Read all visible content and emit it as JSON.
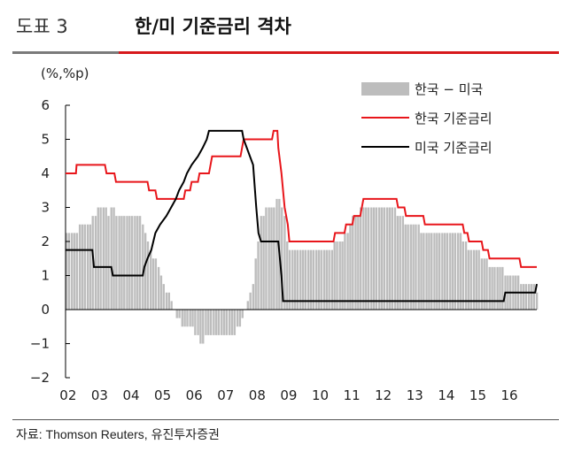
{
  "header": {
    "figure_label": "도표 3",
    "title": "한/미 기준금리 격차"
  },
  "unit_label": "(%,%p)",
  "source": "자료: Thomson Reuters, 유진투자증권",
  "chart_data": {
    "type": "bar+line",
    "x_labels": [
      "02",
      "03",
      "04",
      "05",
      "06",
      "07",
      "08",
      "09",
      "10",
      "11",
      "12",
      "13",
      "14",
      "15",
      "16"
    ],
    "y_ticks": [
      "6",
      "5",
      "4",
      "3",
      "2",
      "1",
      "0",
      "−1",
      "−2"
    ],
    "ylim": [
      -2,
      6
    ],
    "xlim": [
      2002.0,
      2016.95
    ],
    "legend_position": "top-right",
    "colors": {
      "diff": "#bdbdbd",
      "korea": "#e8161b",
      "us": "#000000"
    },
    "series": [
      {
        "name": "한국 − 미국",
        "type": "bar",
        "color": "#bdbdbd",
        "values": [
          [
            2002.0,
            2.25
          ],
          [
            2002.08,
            2.25
          ],
          [
            2002.17,
            2.25
          ],
          [
            2002.25,
            2.25
          ],
          [
            2002.33,
            2.25
          ],
          [
            2002.42,
            2.5
          ],
          [
            2002.5,
            2.5
          ],
          [
            2002.58,
            2.5
          ],
          [
            2002.67,
            2.5
          ],
          [
            2002.75,
            2.5
          ],
          [
            2002.83,
            2.75
          ],
          [
            2002.92,
            2.75
          ],
          [
            2003.0,
            3.0
          ],
          [
            2003.08,
            3.0
          ],
          [
            2003.17,
            3.0
          ],
          [
            2003.25,
            3.0
          ],
          [
            2003.33,
            2.75
          ],
          [
            2003.42,
            3.0
          ],
          [
            2003.5,
            3.0
          ],
          [
            2003.58,
            2.75
          ],
          [
            2003.67,
            2.75
          ],
          [
            2003.75,
            2.75
          ],
          [
            2003.83,
            2.75
          ],
          [
            2003.92,
            2.75
          ],
          [
            2004.0,
            2.75
          ],
          [
            2004.08,
            2.75
          ],
          [
            2004.17,
            2.75
          ],
          [
            2004.25,
            2.75
          ],
          [
            2004.33,
            2.75
          ],
          [
            2004.42,
            2.5
          ],
          [
            2004.5,
            2.25
          ],
          [
            2004.58,
            2.0
          ],
          [
            2004.67,
            1.75
          ],
          [
            2004.75,
            1.5
          ],
          [
            2004.83,
            1.5
          ],
          [
            2004.92,
            1.25
          ],
          [
            2005.0,
            1.0
          ],
          [
            2005.08,
            0.75
          ],
          [
            2005.17,
            0.5
          ],
          [
            2005.25,
            0.5
          ],
          [
            2005.33,
            0.25
          ],
          [
            2005.42,
            0.0
          ],
          [
            2005.5,
            -0.25
          ],
          [
            2005.58,
            -0.25
          ],
          [
            2005.67,
            -0.5
          ],
          [
            2005.75,
            -0.5
          ],
          [
            2005.83,
            -0.5
          ],
          [
            2005.92,
            -0.5
          ],
          [
            2006.0,
            -0.5
          ],
          [
            2006.08,
            -0.75
          ],
          [
            2006.17,
            -0.75
          ],
          [
            2006.25,
            -1.0
          ],
          [
            2006.33,
            -1.0
          ],
          [
            2006.42,
            -0.75
          ],
          [
            2006.5,
            -0.75
          ],
          [
            2006.58,
            -0.75
          ],
          [
            2006.67,
            -0.75
          ],
          [
            2006.75,
            -0.75
          ],
          [
            2006.83,
            -0.75
          ],
          [
            2006.92,
            -0.75
          ],
          [
            2007.0,
            -0.75
          ],
          [
            2007.08,
            -0.75
          ],
          [
            2007.17,
            -0.75
          ],
          [
            2007.25,
            -0.75
          ],
          [
            2007.33,
            -0.75
          ],
          [
            2007.42,
            -0.5
          ],
          [
            2007.5,
            -0.5
          ],
          [
            2007.58,
            -0.25
          ],
          [
            2007.67,
            0.0
          ],
          [
            2007.75,
            0.25
          ],
          [
            2007.83,
            0.5
          ],
          [
            2007.92,
            0.75
          ],
          [
            2008.0,
            1.5
          ],
          [
            2008.08,
            2.0
          ],
          [
            2008.17,
            2.75
          ],
          [
            2008.25,
            2.75
          ],
          [
            2008.33,
            3.0
          ],
          [
            2008.42,
            3.0
          ],
          [
            2008.5,
            3.0
          ],
          [
            2008.58,
            3.0
          ],
          [
            2008.67,
            3.25
          ],
          [
            2008.75,
            3.25
          ],
          [
            2008.83,
            3.0
          ],
          [
            2008.92,
            2.75
          ],
          [
            2009.0,
            2.0
          ],
          [
            2009.08,
            1.75
          ],
          [
            2009.17,
            1.75
          ],
          [
            2009.25,
            1.75
          ],
          [
            2009.33,
            1.75
          ],
          [
            2009.42,
            1.75
          ],
          [
            2009.5,
            1.75
          ],
          [
            2009.58,
            1.75
          ],
          [
            2009.67,
            1.75
          ],
          [
            2009.75,
            1.75
          ],
          [
            2009.83,
            1.75
          ],
          [
            2009.92,
            1.75
          ],
          [
            2010.0,
            1.75
          ],
          [
            2010.08,
            1.75
          ],
          [
            2010.17,
            1.75
          ],
          [
            2010.25,
            1.75
          ],
          [
            2010.33,
            1.75
          ],
          [
            2010.42,
            1.75
          ],
          [
            2010.5,
            2.0
          ],
          [
            2010.58,
            2.0
          ],
          [
            2010.67,
            2.0
          ],
          [
            2010.75,
            2.0
          ],
          [
            2010.83,
            2.25
          ],
          [
            2010.92,
            2.25
          ],
          [
            2011.0,
            2.5
          ],
          [
            2011.08,
            2.75
          ],
          [
            2011.17,
            2.75
          ],
          [
            2011.25,
            2.75
          ],
          [
            2011.33,
            3.0
          ],
          [
            2011.42,
            3.0
          ],
          [
            2011.5,
            3.0
          ],
          [
            2011.58,
            3.0
          ],
          [
            2011.67,
            3.0
          ],
          [
            2011.75,
            3.0
          ],
          [
            2011.83,
            3.0
          ],
          [
            2011.92,
            3.0
          ],
          [
            2012.0,
            3.0
          ],
          [
            2012.08,
            3.0
          ],
          [
            2012.17,
            3.0
          ],
          [
            2012.25,
            3.0
          ],
          [
            2012.33,
            3.0
          ],
          [
            2012.42,
            3.0
          ],
          [
            2012.5,
            2.75
          ],
          [
            2012.58,
            2.75
          ],
          [
            2012.67,
            2.75
          ],
          [
            2012.75,
            2.5
          ],
          [
            2012.83,
            2.5
          ],
          [
            2012.92,
            2.5
          ],
          [
            2013.0,
            2.5
          ],
          [
            2013.08,
            2.5
          ],
          [
            2013.17,
            2.5
          ],
          [
            2013.25,
            2.25
          ],
          [
            2013.33,
            2.25
          ],
          [
            2013.42,
            2.25
          ],
          [
            2013.5,
            2.25
          ],
          [
            2013.58,
            2.25
          ],
          [
            2013.67,
            2.25
          ],
          [
            2013.75,
            2.25
          ],
          [
            2013.83,
            2.25
          ],
          [
            2013.92,
            2.25
          ],
          [
            2014.0,
            2.25
          ],
          [
            2014.08,
            2.25
          ],
          [
            2014.17,
            2.25
          ],
          [
            2014.25,
            2.25
          ],
          [
            2014.33,
            2.25
          ],
          [
            2014.42,
            2.25
          ],
          [
            2014.5,
            2.25
          ],
          [
            2014.58,
            2.0
          ],
          [
            2014.67,
            2.0
          ],
          [
            2014.75,
            1.75
          ],
          [
            2014.83,
            1.75
          ],
          [
            2014.92,
            1.75
          ],
          [
            2015.0,
            1.75
          ],
          [
            2015.08,
            1.75
          ],
          [
            2015.17,
            1.5
          ],
          [
            2015.25,
            1.5
          ],
          [
            2015.33,
            1.5
          ],
          [
            2015.42,
            1.25
          ],
          [
            2015.5,
            1.25
          ],
          [
            2015.58,
            1.25
          ],
          [
            2015.67,
            1.25
          ],
          [
            2015.75,
            1.25
          ],
          [
            2015.83,
            1.25
          ],
          [
            2015.92,
            1.0
          ],
          [
            2016.0,
            1.0
          ],
          [
            2016.08,
            1.0
          ],
          [
            2016.17,
            1.0
          ],
          [
            2016.25,
            1.0
          ],
          [
            2016.33,
            1.0
          ],
          [
            2016.42,
            0.75
          ],
          [
            2016.5,
            0.75
          ],
          [
            2016.58,
            0.75
          ],
          [
            2016.67,
            0.75
          ],
          [
            2016.75,
            0.75
          ],
          [
            2016.83,
            0.75
          ],
          [
            2016.92,
            0.5
          ]
        ]
      },
      {
        "name": "한국 기준금리",
        "type": "line",
        "color": "#e8161b",
        "points": [
          [
            2002.0,
            4.0
          ],
          [
            2002.33,
            4.0
          ],
          [
            2002.35,
            4.25
          ],
          [
            2003.25,
            4.25
          ],
          [
            2003.3,
            4.0
          ],
          [
            2003.55,
            4.0
          ],
          [
            2003.6,
            3.75
          ],
          [
            2004.6,
            3.75
          ],
          [
            2004.65,
            3.5
          ],
          [
            2004.85,
            3.5
          ],
          [
            2004.9,
            3.25
          ],
          [
            2005.75,
            3.25
          ],
          [
            2005.8,
            3.5
          ],
          [
            2005.95,
            3.5
          ],
          [
            2006.0,
            3.75
          ],
          [
            2006.2,
            3.75
          ],
          [
            2006.25,
            4.0
          ],
          [
            2006.55,
            4.0
          ],
          [
            2006.6,
            4.25
          ],
          [
            2006.65,
            4.5
          ],
          [
            2007.55,
            4.5
          ],
          [
            2007.6,
            4.75
          ],
          [
            2007.65,
            5.0
          ],
          [
            2008.55,
            5.0
          ],
          [
            2008.6,
            5.25
          ],
          [
            2008.72,
            5.25
          ],
          [
            2008.75,
            4.75
          ],
          [
            2008.85,
            4.0
          ],
          [
            2008.95,
            3.0
          ],
          [
            2009.05,
            2.5
          ],
          [
            2009.1,
            2.0
          ],
          [
            2010.5,
            2.0
          ],
          [
            2010.55,
            2.25
          ],
          [
            2010.85,
            2.25
          ],
          [
            2010.9,
            2.5
          ],
          [
            2011.1,
            2.5
          ],
          [
            2011.15,
            2.75
          ],
          [
            2011.35,
            2.75
          ],
          [
            2011.4,
            3.0
          ],
          [
            2011.45,
            3.25
          ],
          [
            2012.5,
            3.25
          ],
          [
            2012.55,
            3.0
          ],
          [
            2012.75,
            3.0
          ],
          [
            2012.8,
            2.75
          ],
          [
            2013.35,
            2.75
          ],
          [
            2013.4,
            2.5
          ],
          [
            2014.6,
            2.5
          ],
          [
            2014.65,
            2.25
          ],
          [
            2014.75,
            2.25
          ],
          [
            2014.8,
            2.0
          ],
          [
            2015.2,
            2.0
          ],
          [
            2015.25,
            1.75
          ],
          [
            2015.4,
            1.75
          ],
          [
            2015.45,
            1.5
          ],
          [
            2016.4,
            1.5
          ],
          [
            2016.45,
            1.25
          ],
          [
            2016.95,
            1.25
          ]
        ]
      },
      {
        "name": "미국 기준금리",
        "type": "line",
        "color": "#000000",
        "points": [
          [
            2002.0,
            1.75
          ],
          [
            2002.85,
            1.75
          ],
          [
            2002.9,
            1.25
          ],
          [
            2003.45,
            1.25
          ],
          [
            2003.5,
            1.0
          ],
          [
            2004.45,
            1.0
          ],
          [
            2004.5,
            1.25
          ],
          [
            2004.6,
            1.5
          ],
          [
            2004.72,
            1.75
          ],
          [
            2004.85,
            2.25
          ],
          [
            2005.0,
            2.5
          ],
          [
            2005.2,
            2.75
          ],
          [
            2005.35,
            3.0
          ],
          [
            2005.5,
            3.25
          ],
          [
            2005.6,
            3.5
          ],
          [
            2005.75,
            3.75
          ],
          [
            2005.85,
            4.0
          ],
          [
            2006.0,
            4.25
          ],
          [
            2006.2,
            4.5
          ],
          [
            2006.35,
            4.75
          ],
          [
            2006.48,
            5.0
          ],
          [
            2006.55,
            5.25
          ],
          [
            2007.6,
            5.25
          ],
          [
            2007.65,
            5.0
          ],
          [
            2007.75,
            4.75
          ],
          [
            2007.85,
            4.5
          ],
          [
            2007.95,
            4.25
          ],
          [
            2008.05,
            3.0
          ],
          [
            2008.12,
            2.25
          ],
          [
            2008.2,
            2.0
          ],
          [
            2008.75,
            2.0
          ],
          [
            2008.8,
            1.5
          ],
          [
            2008.85,
            1.0
          ],
          [
            2008.9,
            0.25
          ],
          [
            2015.9,
            0.25
          ],
          [
            2015.95,
            0.5
          ],
          [
            2016.9,
            0.5
          ],
          [
            2016.95,
            0.75
          ]
        ]
      }
    ]
  }
}
